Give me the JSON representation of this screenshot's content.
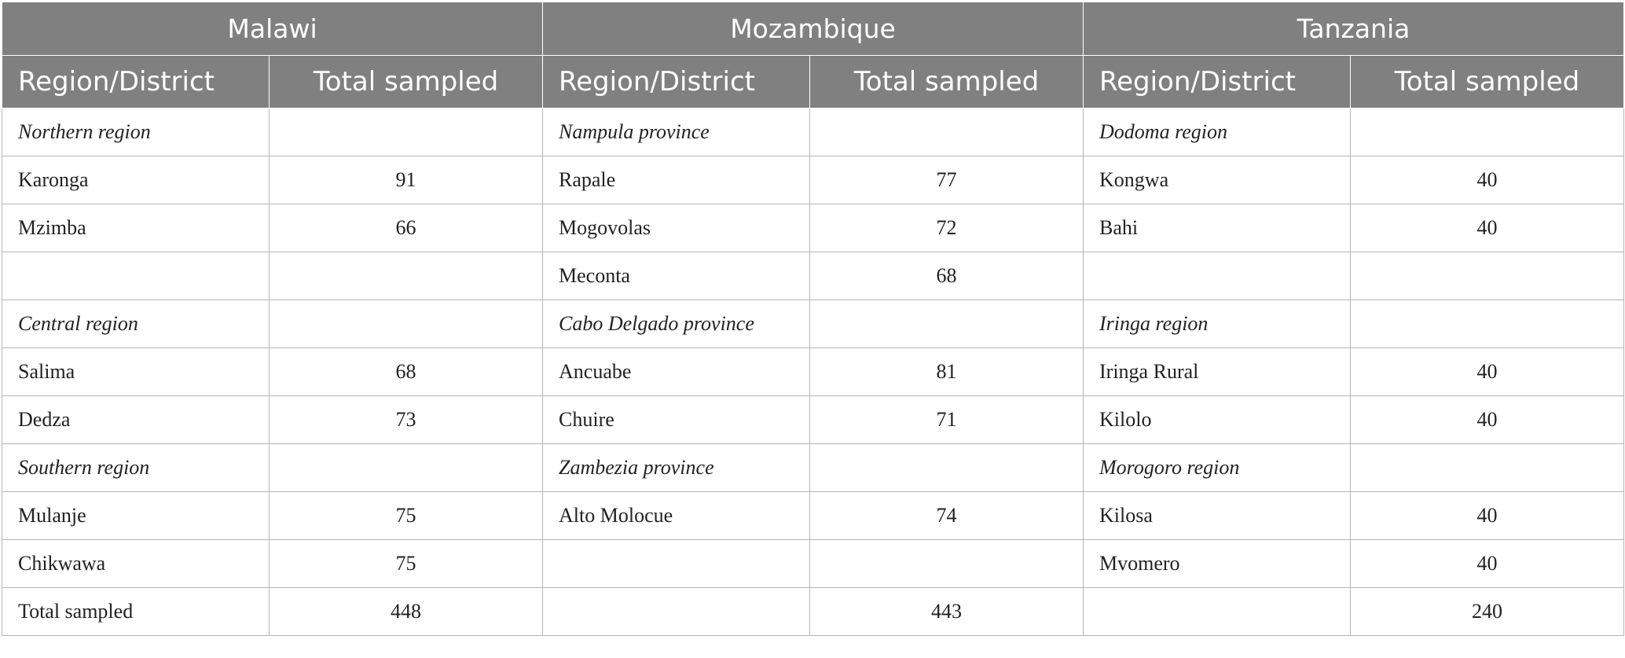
{
  "countries": [
    {
      "name": "Malawi",
      "col_region": "Region/District",
      "col_total": "Total sampled"
    },
    {
      "name": "Mozambique",
      "col_region": "Region/District",
      "col_total": "Total sampled"
    },
    {
      "name": "Tanzania",
      "col_region": "Region/District",
      "col_total": "Total sampled"
    }
  ],
  "rows": [
    [
      {
        "name": "Northern region",
        "value": "",
        "group": true
      },
      {
        "name": "Nampula province",
        "value": "",
        "group": true
      },
      {
        "name": "Dodoma region",
        "value": "",
        "group": true
      }
    ],
    [
      {
        "name": "Karonga",
        "value": "91"
      },
      {
        "name": "Rapale",
        "value": "77"
      },
      {
        "name": "Kongwa",
        "value": "40"
      }
    ],
    [
      {
        "name": "Mzimba",
        "value": "66"
      },
      {
        "name": "Mogovolas",
        "value": "72"
      },
      {
        "name": "Bahi",
        "value": "40"
      }
    ],
    [
      {
        "name": "",
        "value": ""
      },
      {
        "name": "Meconta",
        "value": "68"
      },
      {
        "name": "",
        "value": ""
      }
    ],
    [
      {
        "name": "Central region",
        "value": "",
        "group": true
      },
      {
        "name": "Cabo Delgado province",
        "value": "",
        "group": true
      },
      {
        "name": "Iringa region",
        "value": "",
        "group": true
      }
    ],
    [
      {
        "name": "Salima",
        "value": "68"
      },
      {
        "name": "Ancuabe",
        "value": "81"
      },
      {
        "name": "Iringa Rural",
        "value": "40"
      }
    ],
    [
      {
        "name": "Dedza",
        "value": "73"
      },
      {
        "name": "Chuire",
        "value": "71"
      },
      {
        "name": "Kilolo",
        "value": "40"
      }
    ],
    [
      {
        "name": "Southern region",
        "value": "",
        "group": true
      },
      {
        "name": "Zambezia province",
        "value": "",
        "group": true
      },
      {
        "name": "Morogoro region",
        "value": "",
        "group": true
      }
    ],
    [
      {
        "name": "Mulanje",
        "value": "75"
      },
      {
        "name": "Alto Molocue",
        "value": "74"
      },
      {
        "name": "Kilosa",
        "value": "40"
      }
    ],
    [
      {
        "name": "Chikwawa",
        "value": "75"
      },
      {
        "name": "",
        "value": ""
      },
      {
        "name": "Mvomero",
        "value": "40"
      }
    ],
    [
      {
        "name": "Total sampled",
        "value": "448"
      },
      {
        "name": "",
        "value": "443"
      },
      {
        "name": "",
        "value": "240"
      }
    ]
  ]
}
